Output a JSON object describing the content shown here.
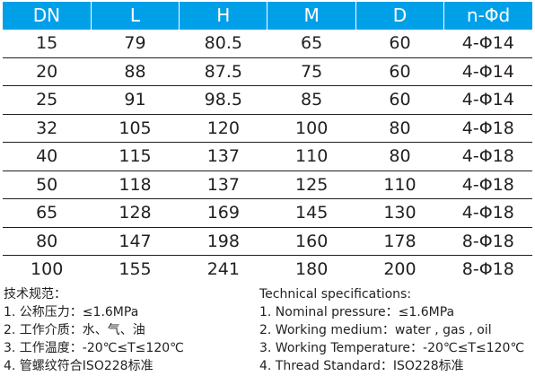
{
  "table": {
    "headers": [
      "DN",
      "L",
      "H",
      "M",
      "D",
      "n-Φd"
    ],
    "rows": [
      [
        "15",
        "79",
        "80.5",
        "65",
        "60",
        "4-Φ14"
      ],
      [
        "20",
        "88",
        "87.5",
        "75",
        "60",
        "4-Φ14"
      ],
      [
        "25",
        "91",
        "98.5",
        "85",
        "60",
        "4-Φ14"
      ],
      [
        "32",
        "105",
        "120",
        "100",
        "80",
        "4-Φ18"
      ],
      [
        "40",
        "115",
        "137",
        "110",
        "80",
        "4-Φ18"
      ],
      [
        "50",
        "118",
        "137",
        "125",
        "110",
        "4-Φ18"
      ],
      [
        "65",
        "128",
        "169",
        "145",
        "130",
        "4-Φ18"
      ],
      [
        "80",
        "147",
        "198",
        "160",
        "178",
        "8-Φ18"
      ],
      [
        "100",
        "155",
        "241",
        "180",
        "200",
        "8-Φ18"
      ]
    ]
  },
  "notes_cn": {
    "title": "技术规范：",
    "items": [
      "1. 公称压力：≤1.6MPa",
      "2. 工作介质：水、气、油",
      "3. 工作温度：-20℃≤T≤120℃",
      "4. 管螺纹符合ISO228标准"
    ]
  },
  "notes_en": {
    "title": "Technical specifications:",
    "items": [
      "1. Nominal pressure：≤1.6MPa",
      "2. Working medium：water , gas , oil",
      "3. Working Temperature：-20℃≤T≤120℃",
      "4. Thread Standard：ISO228标准"
    ]
  },
  "colors": {
    "header_bg": "#00a0e9",
    "header_text": "#ffffff",
    "text": "#231f20"
  }
}
